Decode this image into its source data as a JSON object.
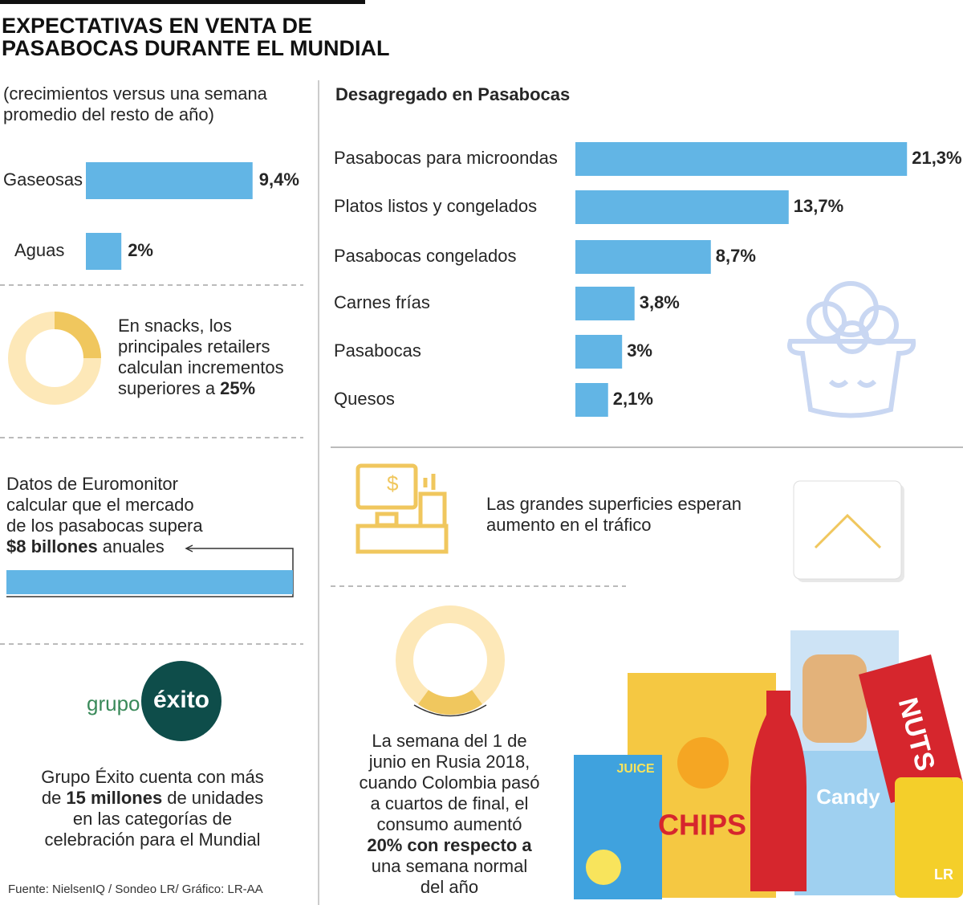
{
  "header": {
    "title_lines": [
      "EXPECTATIVAS EN VENTA DE",
      "PASABOCAS DURANTE EL MUNDIAL"
    ]
  },
  "chart_data": [
    {
      "type": "bar",
      "subtitle_lines": [
        "(crecimientos versus una semana",
        "promedio del resto de año)"
      ],
      "categories": [
        "Gaseosas",
        "Aguas"
      ],
      "values": [
        9.4,
        2
      ],
      "value_labels": [
        "9,4%",
        "2%"
      ],
      "color": "#62b5e5"
    },
    {
      "type": "bar",
      "title": "Desagregado en Pasabocas",
      "categories": [
        "Pasabocas para microondas",
        "Platos listos y congelados",
        "Pasabocas congelados",
        "Carnes frías",
        "Pasabocas",
        "Quesos"
      ],
      "values": [
        21.3,
        13.7,
        8.7,
        3.8,
        3,
        2.1
      ],
      "value_labels": [
        "21,3%",
        "13,7%",
        "8,7%",
        "3,8%",
        "3%",
        "2,1%"
      ],
      "color": "#62b5e5"
    },
    {
      "type": "donut",
      "text_lines": [
        "En snacks, los",
        "principales retailers",
        "calculan incrementos",
        "superiores a"
      ],
      "values": [
        25
      ],
      "value_labels": [
        "25%"
      ],
      "color": "#f0c75e",
      "track_color": "#fde8b8"
    },
    {
      "type": "donut",
      "text_lines": [
        "La semana del 1 de",
        "junio en Rusia 2018,",
        "cuando Colombia pasó",
        "a cuartos de final, el",
        "consumo aumentó"
      ],
      "values": [
        20
      ],
      "value_labels": [
        "20%"
      ],
      "suffix": "con respecto a",
      "text_lines_after": [
        "una semana normal",
        "del año"
      ],
      "color": "#f0c75e",
      "track_color": "#fde8b8"
    }
  ],
  "euromonitor": {
    "lines": [
      "Datos de Euromonitor",
      "calcular que el mercado",
      "de los pasabocas supera"
    ],
    "highlight": "$8 billones",
    "suffix": "anuales"
  },
  "exito": {
    "logo_prefix": "grupo",
    "logo": "éxito",
    "line_first": "Grupo Éxito cuenta con más",
    "prefix": "de",
    "highlight": "15 millones",
    "suffix": "de unidades",
    "lines_after": [
      "en las categorías de",
      "celebración para el Mundial"
    ]
  },
  "retail": {
    "lines": [
      "Las grandes superficies esperan",
      "aumento en el tráfico"
    ]
  },
  "illustration": {
    "labels": [
      "JUICE",
      "CHIPS",
      "NUTS",
      "Candy",
      "LR"
    ]
  },
  "footer": {
    "source": "Fuente: NielsenIQ / Sondeo LR/ Gráfico: LR-AA"
  }
}
